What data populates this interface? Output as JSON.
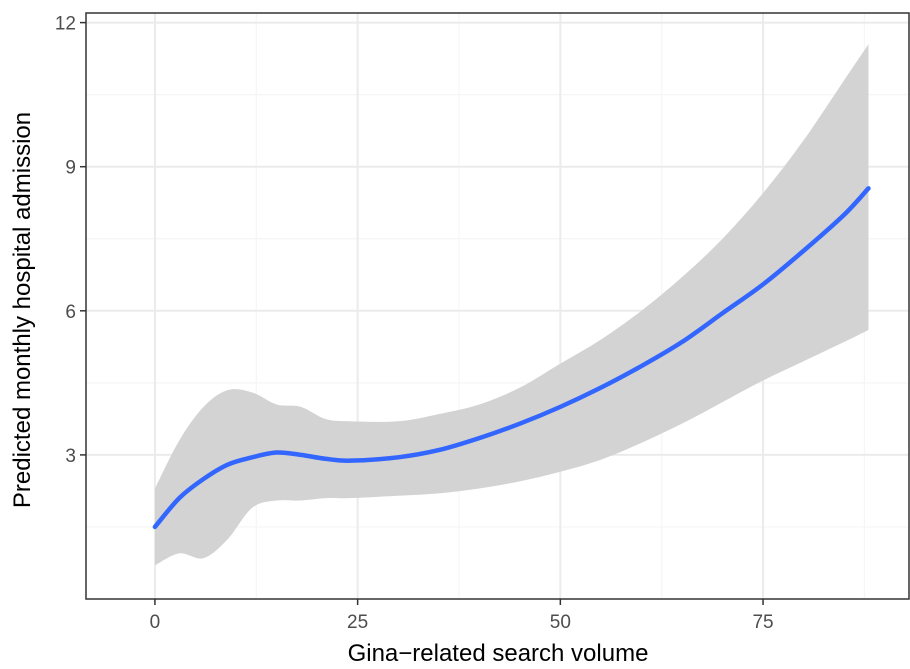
{
  "chart_data": {
    "type": "line",
    "xlabel": "Gina−related search volume",
    "ylabel": "Predicted monthly hospital admission",
    "xlim": [
      -8.5,
      93
    ],
    "ylim": [
      0,
      12.2
    ],
    "x_ticks": [
      0,
      25,
      50,
      75
    ],
    "x_tick_labels": [
      "0",
      "25",
      "50",
      "75"
    ],
    "y_ticks": [
      3,
      6,
      9,
      12
    ],
    "y_tick_labels": [
      "3",
      "6",
      "9",
      "12"
    ],
    "grid": true,
    "legend": "none",
    "series": [
      {
        "style": "smooth-line-with-confidence-band",
        "x": [
          0,
          3,
          6,
          9,
          12,
          15,
          18,
          21,
          24,
          30,
          35,
          40,
          45,
          50,
          55,
          60,
          65,
          70,
          75,
          80,
          85,
          88
        ],
        "y": [
          1.5,
          2.1,
          2.5,
          2.8,
          2.95,
          3.05,
          3.0,
          2.92,
          2.88,
          2.95,
          3.1,
          3.35,
          3.65,
          4.0,
          4.4,
          4.85,
          5.35,
          5.95,
          6.55,
          7.25,
          8.0,
          8.55
        ],
        "lower": [
          0.7,
          0.95,
          0.85,
          1.25,
          1.9,
          2.05,
          2.05,
          2.1,
          2.1,
          2.15,
          2.2,
          2.3,
          2.45,
          2.65,
          2.9,
          3.25,
          3.65,
          4.1,
          4.55,
          4.95,
          5.35,
          5.6
        ],
        "upper": [
          2.3,
          3.3,
          4.0,
          4.35,
          4.3,
          4.05,
          4.0,
          3.75,
          3.7,
          3.7,
          3.85,
          4.05,
          4.4,
          4.9,
          5.4,
          6.0,
          6.7,
          7.5,
          8.45,
          9.55,
          10.8,
          11.55
        ]
      }
    ],
    "colors": {
      "line": "#3366FF",
      "band": "#d3d3d3",
      "grid_major": "#ebebeb",
      "grid_minor": "#f5f5f5",
      "panel_border": "#333333",
      "tick_label": "#4d4d4d"
    }
  }
}
